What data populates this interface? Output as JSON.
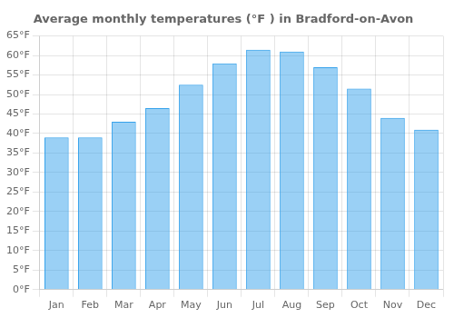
{
  "chart_data": {
    "type": "bar",
    "title": "Average monthly temperatures (°F ) in Bradford-on-Avon",
    "categories": [
      "Jan",
      "Feb",
      "Mar",
      "Apr",
      "May",
      "Jun",
      "Jul",
      "Aug",
      "Sep",
      "Oct",
      "Nov",
      "Dec"
    ],
    "values": [
      39,
      39,
      43,
      46.5,
      52.5,
      58,
      61.5,
      61,
      57,
      51.5,
      44,
      41
    ],
    "ylim": [
      0,
      65
    ],
    "yticks": [
      {
        "value": 0,
        "label": "0°F"
      },
      {
        "value": 5,
        "label": "5°F"
      },
      {
        "value": 10,
        "label": "10°F"
      },
      {
        "value": 15,
        "label": "15°F"
      },
      {
        "value": 20,
        "label": "20°F"
      },
      {
        "value": 25,
        "label": "25°F"
      },
      {
        "value": 30,
        "label": "30°F"
      },
      {
        "value": 35,
        "label": "35°F"
      },
      {
        "value": 40,
        "label": "40°F"
      },
      {
        "value": 45,
        "label": "45°F"
      },
      {
        "value": 50,
        "label": "50°F"
      },
      {
        "value": 55,
        "label": "55°F"
      },
      {
        "value": 60,
        "label": "60°F"
      },
      {
        "value": 65,
        "label": "65°F"
      }
    ],
    "grid": true
  }
}
